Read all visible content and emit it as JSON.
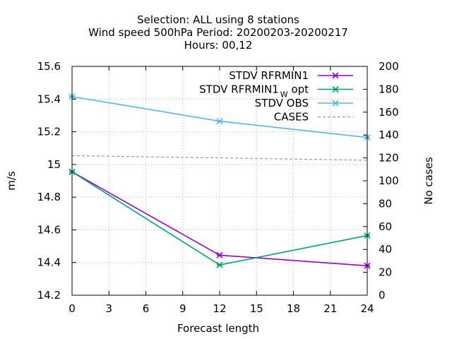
{
  "chart_data": {
    "type": "line",
    "title_lines": [
      "Selection: ALL using     8 stations",
      "Wind speed 500hPa   Period: 20200203-20200217",
      "Hours:  00,12"
    ],
    "xlabel": "Forecast length",
    "ylabel": "m/s",
    "y2label": "No cases",
    "xlim": [
      0,
      24
    ],
    "ylim": [
      14.2,
      15.6
    ],
    "y2lim": [
      0,
      200
    ],
    "xticks": [
      0,
      3,
      6,
      9,
      12,
      15,
      18,
      21,
      24
    ],
    "xtick_labels": [
      "0",
      "3",
      "6",
      "9",
      "12",
      "15",
      "18",
      "21",
      "24"
    ],
    "yticks": [
      14.2,
      14.4,
      14.6,
      14.8,
      15,
      15.2,
      15.4,
      15.6
    ],
    "ytick_labels": [
      "14.2",
      "14.4",
      "14.6",
      "14.8",
      "15",
      "15.2",
      "15.4",
      "15.6"
    ],
    "y2ticks": [
      0,
      20,
      40,
      60,
      80,
      100,
      120,
      140,
      160,
      180,
      200
    ],
    "y2tick_labels": [
      "0",
      "20",
      "40",
      "60",
      "80",
      "100",
      "120",
      "140",
      "160",
      "180",
      "200"
    ],
    "grid": true,
    "legend_position": "top-right",
    "series": [
      {
        "name": "STDV RFRMIN1",
        "name_sub": "",
        "axis": "y",
        "x": [
          0,
          12,
          24
        ],
        "values": [
          14.955,
          14.445,
          14.38
        ],
        "color": "#9400d3",
        "dashed": false,
        "markers": true
      },
      {
        "name": "STDV RFRMIN1",
        "name_sub": "W",
        "name_suffix": " opt",
        "axis": "y",
        "x": [
          0,
          12,
          24
        ],
        "values": [
          14.955,
          14.385,
          14.565
        ],
        "color": "#009e73",
        "dashed": false,
        "markers": true
      },
      {
        "name": "STDV OBS",
        "name_sub": "",
        "axis": "y",
        "x": [
          0,
          12,
          24
        ],
        "values": [
          15.415,
          15.265,
          15.165
        ],
        "color": "#56b4e9",
        "dashed": false,
        "markers": true
      },
      {
        "name": "CASES",
        "name_sub": "",
        "axis": "y2",
        "x": [
          0,
          12,
          24
        ],
        "values": [
          122,
          120,
          118
        ],
        "color": "#999999",
        "dashed": true,
        "markers": false
      }
    ]
  }
}
